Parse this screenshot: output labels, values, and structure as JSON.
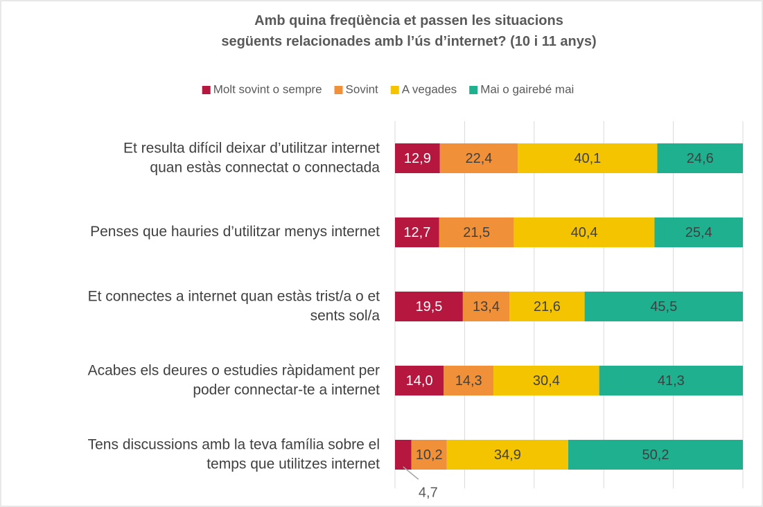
{
  "chart_data": {
    "type": "stacked_bar_horizontal",
    "title": "Amb quina freqüència et passen les situacions\nsegüents relacionades amb l’ús d’internet? (10 i 11 anys)",
    "categories": [
      "Et resulta difícil deixar d’utilitzar internet\nquan estàs connectat o connectada",
      "Penses que hauries d’utilitzar menys internet",
      "Et connectes a internet quan estàs trist/a o et\nsents sol/a",
      "Acabes els deures o estudies ràpidament per\npoder connectar-te a internet",
      "Tens discussions amb la teva família sobre el\ntemps que utilitzes internet"
    ],
    "series": [
      {
        "name": "Molt sovint o sempre",
        "color": "#b5173f",
        "values": [
          12.9,
          12.7,
          19.5,
          14.0,
          4.7
        ],
        "value_labels": [
          "12,9",
          "12,7",
          "19,5",
          "14,0",
          "4,7"
        ]
      },
      {
        "name": "Sovint",
        "color": "#f0913a",
        "values": [
          22.4,
          21.5,
          13.4,
          14.3,
          10.2
        ],
        "value_labels": [
          "22,4",
          "21,5",
          "13,4",
          "14,3",
          "10,2"
        ]
      },
      {
        "name": "A vegades",
        "color": "#f5c400",
        "values": [
          40.1,
          40.4,
          21.6,
          30.4,
          34.9
        ],
        "value_labels": [
          "40,1",
          "40,4",
          "21,6",
          "30,4",
          "34,9"
        ]
      },
      {
        "name": "Mai o gairebé mai",
        "color": "#1fb08f",
        "values": [
          24.6,
          25.4,
          45.5,
          41.3,
          50.2
        ],
        "value_labels": [
          "24,6",
          "25,4",
          "45,5",
          "41,3",
          "50,2"
        ]
      }
    ],
    "xlim": [
      0,
      100
    ],
    "xticks": [
      0,
      20,
      40,
      60,
      80,
      100
    ],
    "grid": true,
    "legend": "top"
  }
}
